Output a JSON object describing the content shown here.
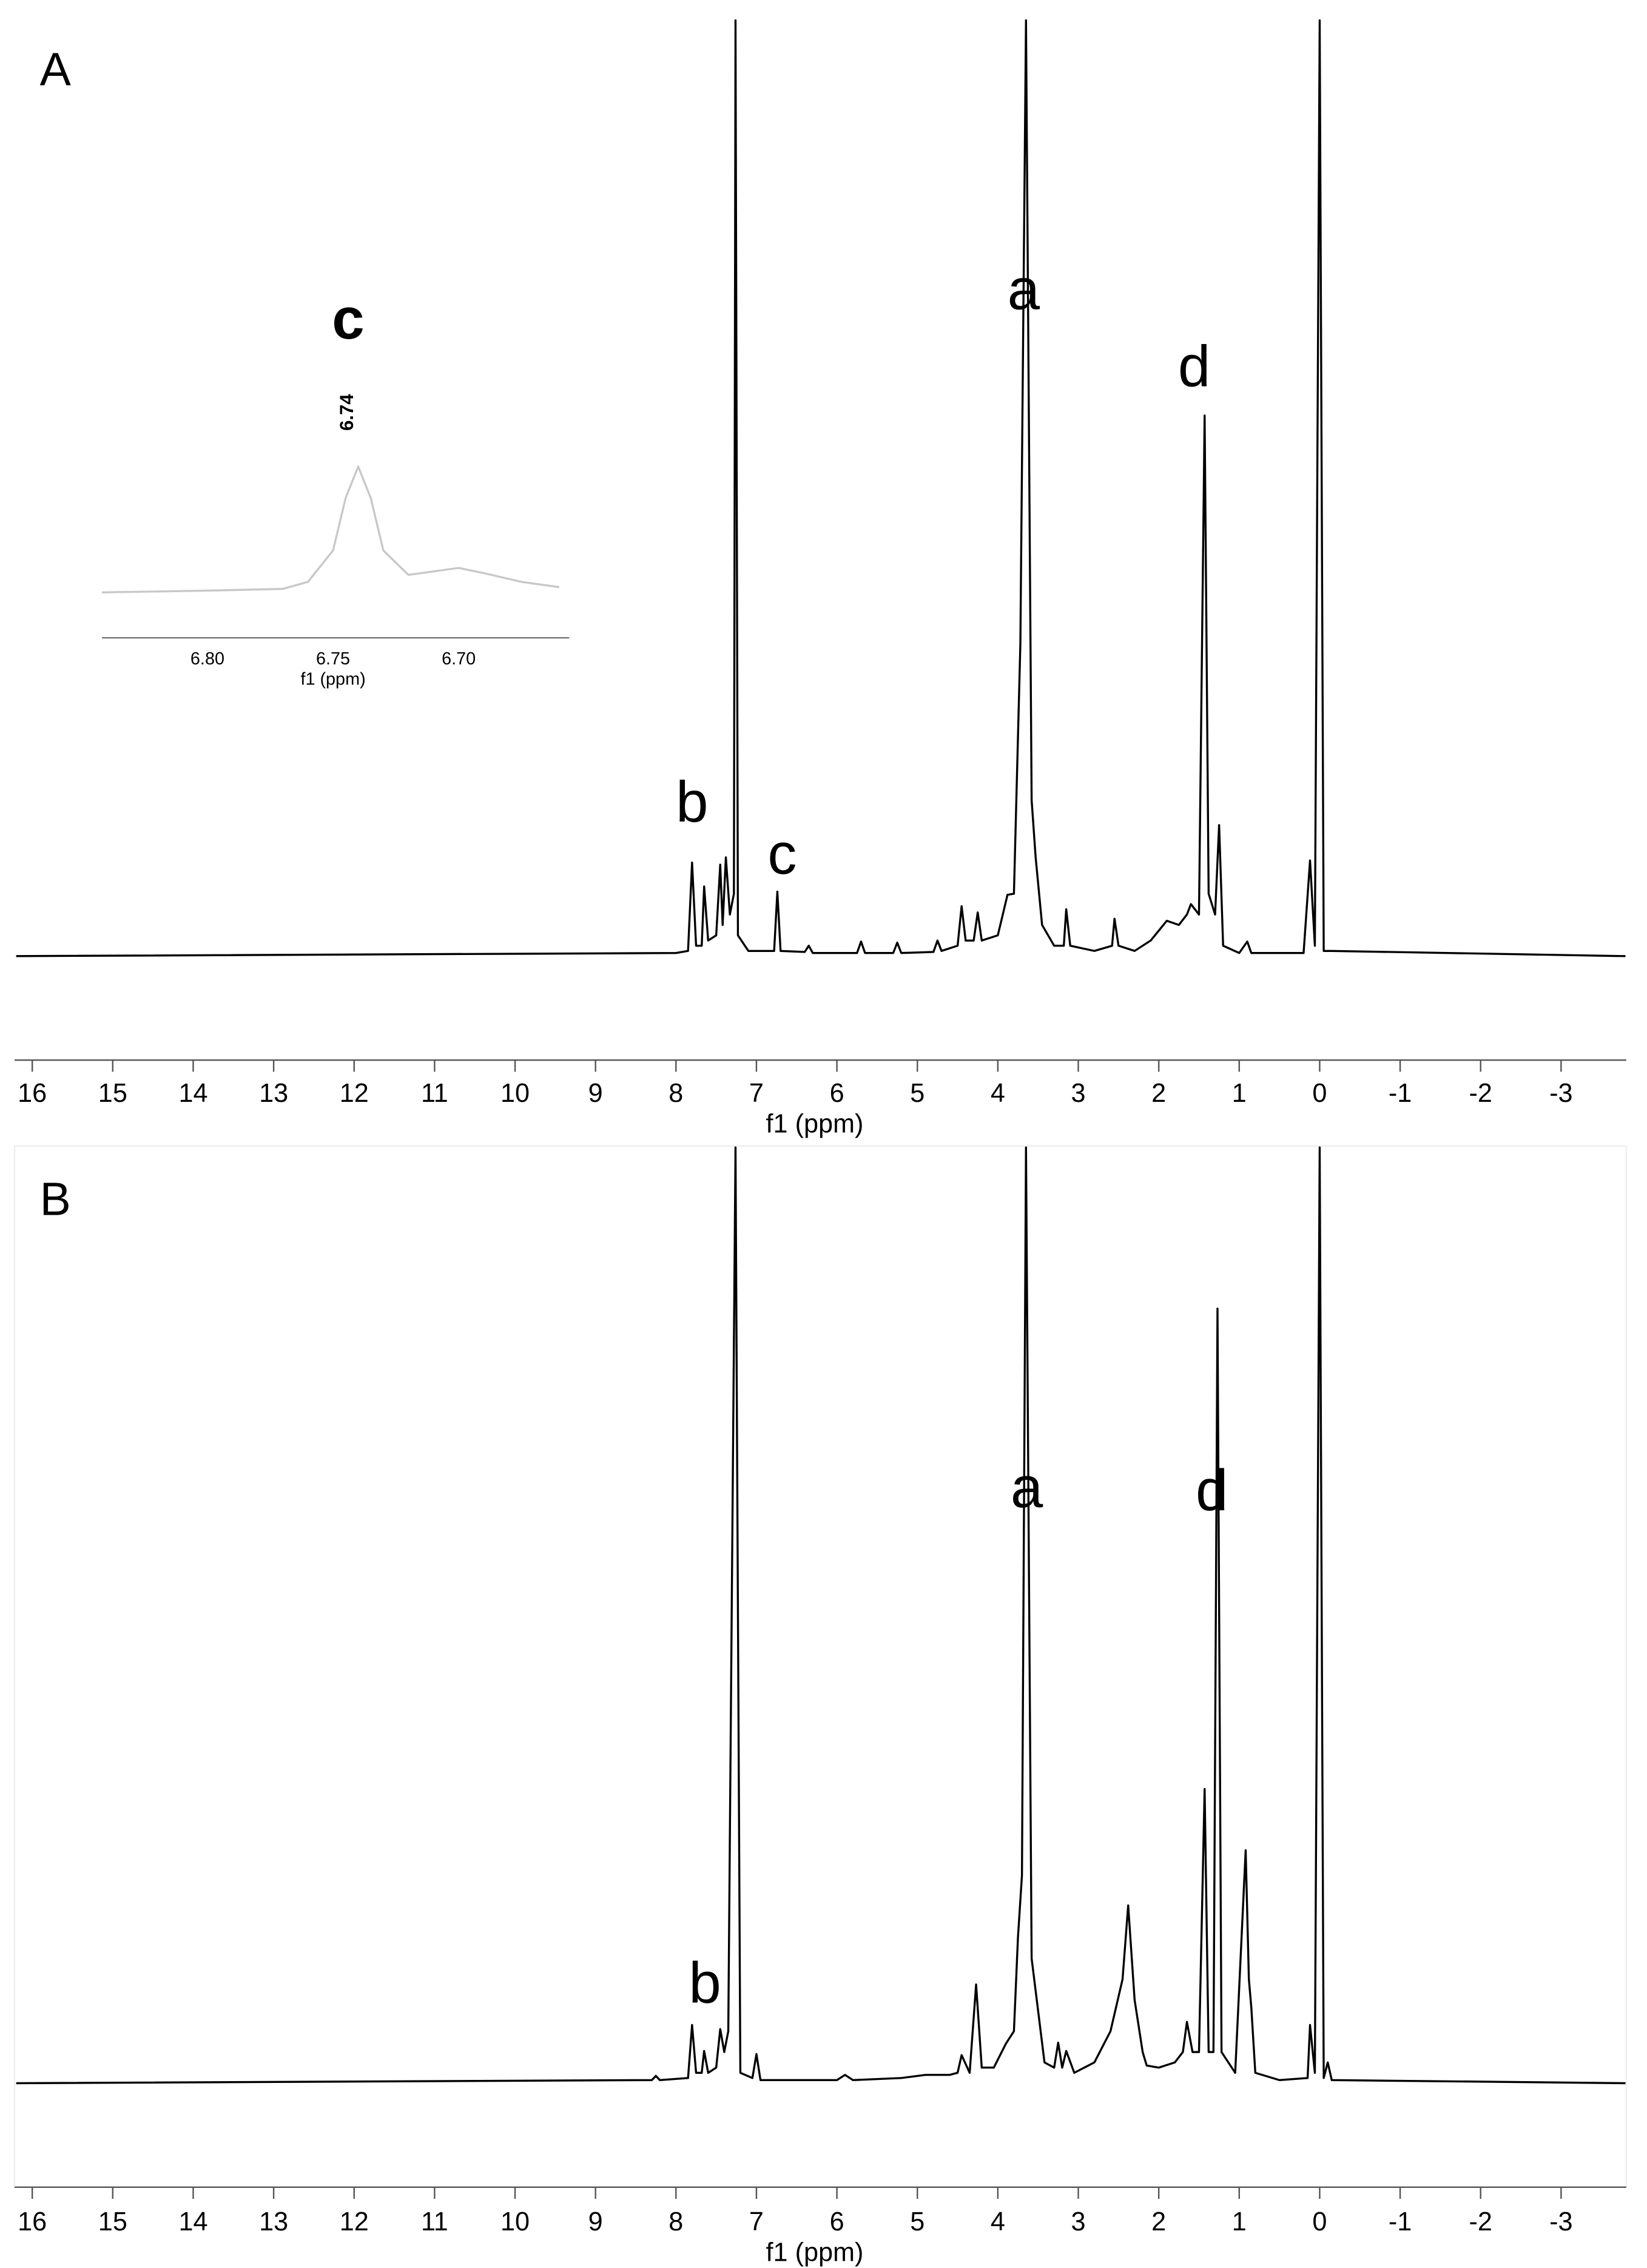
{
  "chart_data": [
    {
      "type": "line",
      "title": "A",
      "xlabel": "f1 (ppm)",
      "color": "#000000",
      "xlim": [
        16.22,
        -3.81
      ],
      "ylim": [
        -10,
        90
      ],
      "xticks": [
        16,
        15,
        14,
        13,
        12,
        11,
        10,
        9,
        8,
        7,
        6,
        5,
        4,
        3,
        2,
        1,
        0,
        -1,
        -2,
        -3
      ],
      "x": [
        16.2,
        8.0,
        7.85,
        7.8,
        7.75,
        7.68,
        7.65,
        7.6,
        7.5,
        7.45,
        7.42,
        7.38,
        7.33,
        7.28,
        7.26,
        7.23,
        7.1,
        6.78,
        6.74,
        6.7,
        6.4,
        6.35,
        6.3,
        5.75,
        5.7,
        5.65,
        5.3,
        5.25,
        5.2,
        4.8,
        4.75,
        4.7,
        4.5,
        4.45,
        4.4,
        4.3,
        4.25,
        4.2,
        4.0,
        3.88,
        3.8,
        3.72,
        3.65,
        3.58,
        3.53,
        3.45,
        3.3,
        3.18,
        3.15,
        3.1,
        2.8,
        2.58,
        2.55,
        2.5,
        2.3,
        2.1,
        1.9,
        1.75,
        1.65,
        1.6,
        1.5,
        1.43,
        1.38,
        1.3,
        1.25,
        1.2,
        1.0,
        0.9,
        0.85,
        0.2,
        0.12,
        0.06,
        0.0,
        -0.05,
        -0.15,
        -3.8
      ],
      "values": [
        0,
        0.3,
        0.5,
        9,
        1,
        1,
        6.7,
        1.5,
        2,
        8.8,
        3,
        9.5,
        4,
        6,
        90,
        2,
        0.5,
        0.5,
        6.2,
        0.5,
        0.4,
        1,
        0.3,
        0.3,
        1.4,
        0.3,
        0.3,
        1.3,
        0.3,
        0.4,
        1.5,
        0.5,
        1,
        4.8,
        1.5,
        1.5,
        4.2,
        1.5,
        2,
        5.9,
        6,
        30,
        90,
        15,
        9.5,
        3,
        1,
        1,
        4.5,
        1,
        0.5,
        1,
        3.6,
        1,
        0.5,
        1.5,
        3.4,
        3,
        4,
        5,
        4,
        52,
        6,
        4,
        12.6,
        1,
        0.3,
        1.4,
        0.3,
        0.3,
        9.2,
        1,
        90,
        0.5,
        0.5,
        0
      ],
      "annotations": [
        {
          "text": "b",
          "x": 7.8,
          "y": 14.4
        },
        {
          "text": "c",
          "x": 6.68,
          "y": 9.4
        },
        {
          "text": "a",
          "x": 3.68,
          "y": 63.7
        },
        {
          "text": "d",
          "x": 1.56,
          "y": 56.3
        }
      ]
    },
    {
      "type": "line",
      "xlabel": "f1 (ppm)",
      "color": "#c8c8c8",
      "xlim": [
        6.842,
        6.656
      ],
      "ylim": [
        0,
        10
      ],
      "xticks": [
        {
          "value": 6.8,
          "label": "6.80"
        },
        6.75,
        {
          "value": 6.7,
          "label": "6.70"
        }
      ],
      "x": [
        6.842,
        6.8,
        6.77,
        6.76,
        6.75,
        6.745,
        6.74,
        6.735,
        6.73,
        6.72,
        6.71,
        6.7,
        6.69,
        6.675,
        6.66
      ],
      "values": [
        2.6,
        2.7,
        2.8,
        3.2,
        5,
        8,
        9.8,
        8,
        5,
        3.6,
        3.8,
        4.0,
        3.7,
        3.2,
        2.9
      ],
      "annotations": [
        {
          "text": "c",
          "x": 6.744,
          "y": 18
        },
        {
          "text": "6.74",
          "x": 6.744,
          "y": 12.9
        }
      ]
    },
    {
      "type": "line",
      "title": "B",
      "xlabel": "f1 (ppm)",
      "color": "#000000",
      "xlim": [
        16.22,
        -3.81
      ],
      "ylim": [
        -10,
        90
      ],
      "xticks": [
        16,
        15,
        14,
        13,
        12,
        11,
        10,
        9,
        8,
        7,
        6,
        5,
        4,
        3,
        2,
        1,
        0,
        -1,
        -2,
        -3
      ],
      "x": [
        16.2,
        8.3,
        8.25,
        8.2,
        7.85,
        7.8,
        7.75,
        7.68,
        7.65,
        7.6,
        7.5,
        7.45,
        7.4,
        7.35,
        7.26,
        7.2,
        7.05,
        7.0,
        6.95,
        6.8,
        6.0,
        5.9,
        5.8,
        5.2,
        4.9,
        4.6,
        4.5,
        4.45,
        4.35,
        4.27,
        4.2,
        4.05,
        3.9,
        3.8,
        3.75,
        3.7,
        3.65,
        3.58,
        3.5,
        3.42,
        3.3,
        3.25,
        3.2,
        3.15,
        3.05,
        2.8,
        2.6,
        2.45,
        2.38,
        2.3,
        2.2,
        2.15,
        2.0,
        1.8,
        1.7,
        1.65,
        1.58,
        1.5,
        1.43,
        1.38,
        1.32,
        1.27,
        1.22,
        1.05,
        0.92,
        0.88,
        0.85,
        0.8,
        0.5,
        0.15,
        0.12,
        0.06,
        0.0,
        -0.05,
        -0.1,
        -0.15,
        -3.8
      ],
      "values": [
        0,
        0.3,
        0.7,
        0.3,
        0.5,
        5.6,
        1,
        1,
        3.1,
        1,
        1.5,
        5.2,
        3,
        5,
        90,
        1,
        0.5,
        2.8,
        0.3,
        0.3,
        0.3,
        0.8,
        0.3,
        0.5,
        0.8,
        0.8,
        1,
        2.7,
        1,
        9.5,
        1.5,
        1.5,
        3.8,
        5,
        14,
        20,
        90,
        12,
        7,
        2,
        1.5,
        3.9,
        1.5,
        3.1,
        1,
        2,
        5,
        10,
        17.1,
        8,
        3,
        1.7,
        1.5,
        2,
        3,
        5.9,
        3,
        3,
        28.3,
        3,
        3,
        74.5,
        3,
        1,
        22.4,
        10,
        7.3,
        1,
        0.3,
        0.5,
        5.6,
        1,
        90,
        0.5,
        2,
        0.3,
        0
      ],
      "annotations": [
        {
          "text": "b",
          "x": 7.64,
          "y": 9.2
        },
        {
          "text": "a",
          "x": 3.64,
          "y": 56.9
        },
        {
          "text": "d",
          "x": 1.34,
          "y": 56.6
        }
      ]
    }
  ]
}
